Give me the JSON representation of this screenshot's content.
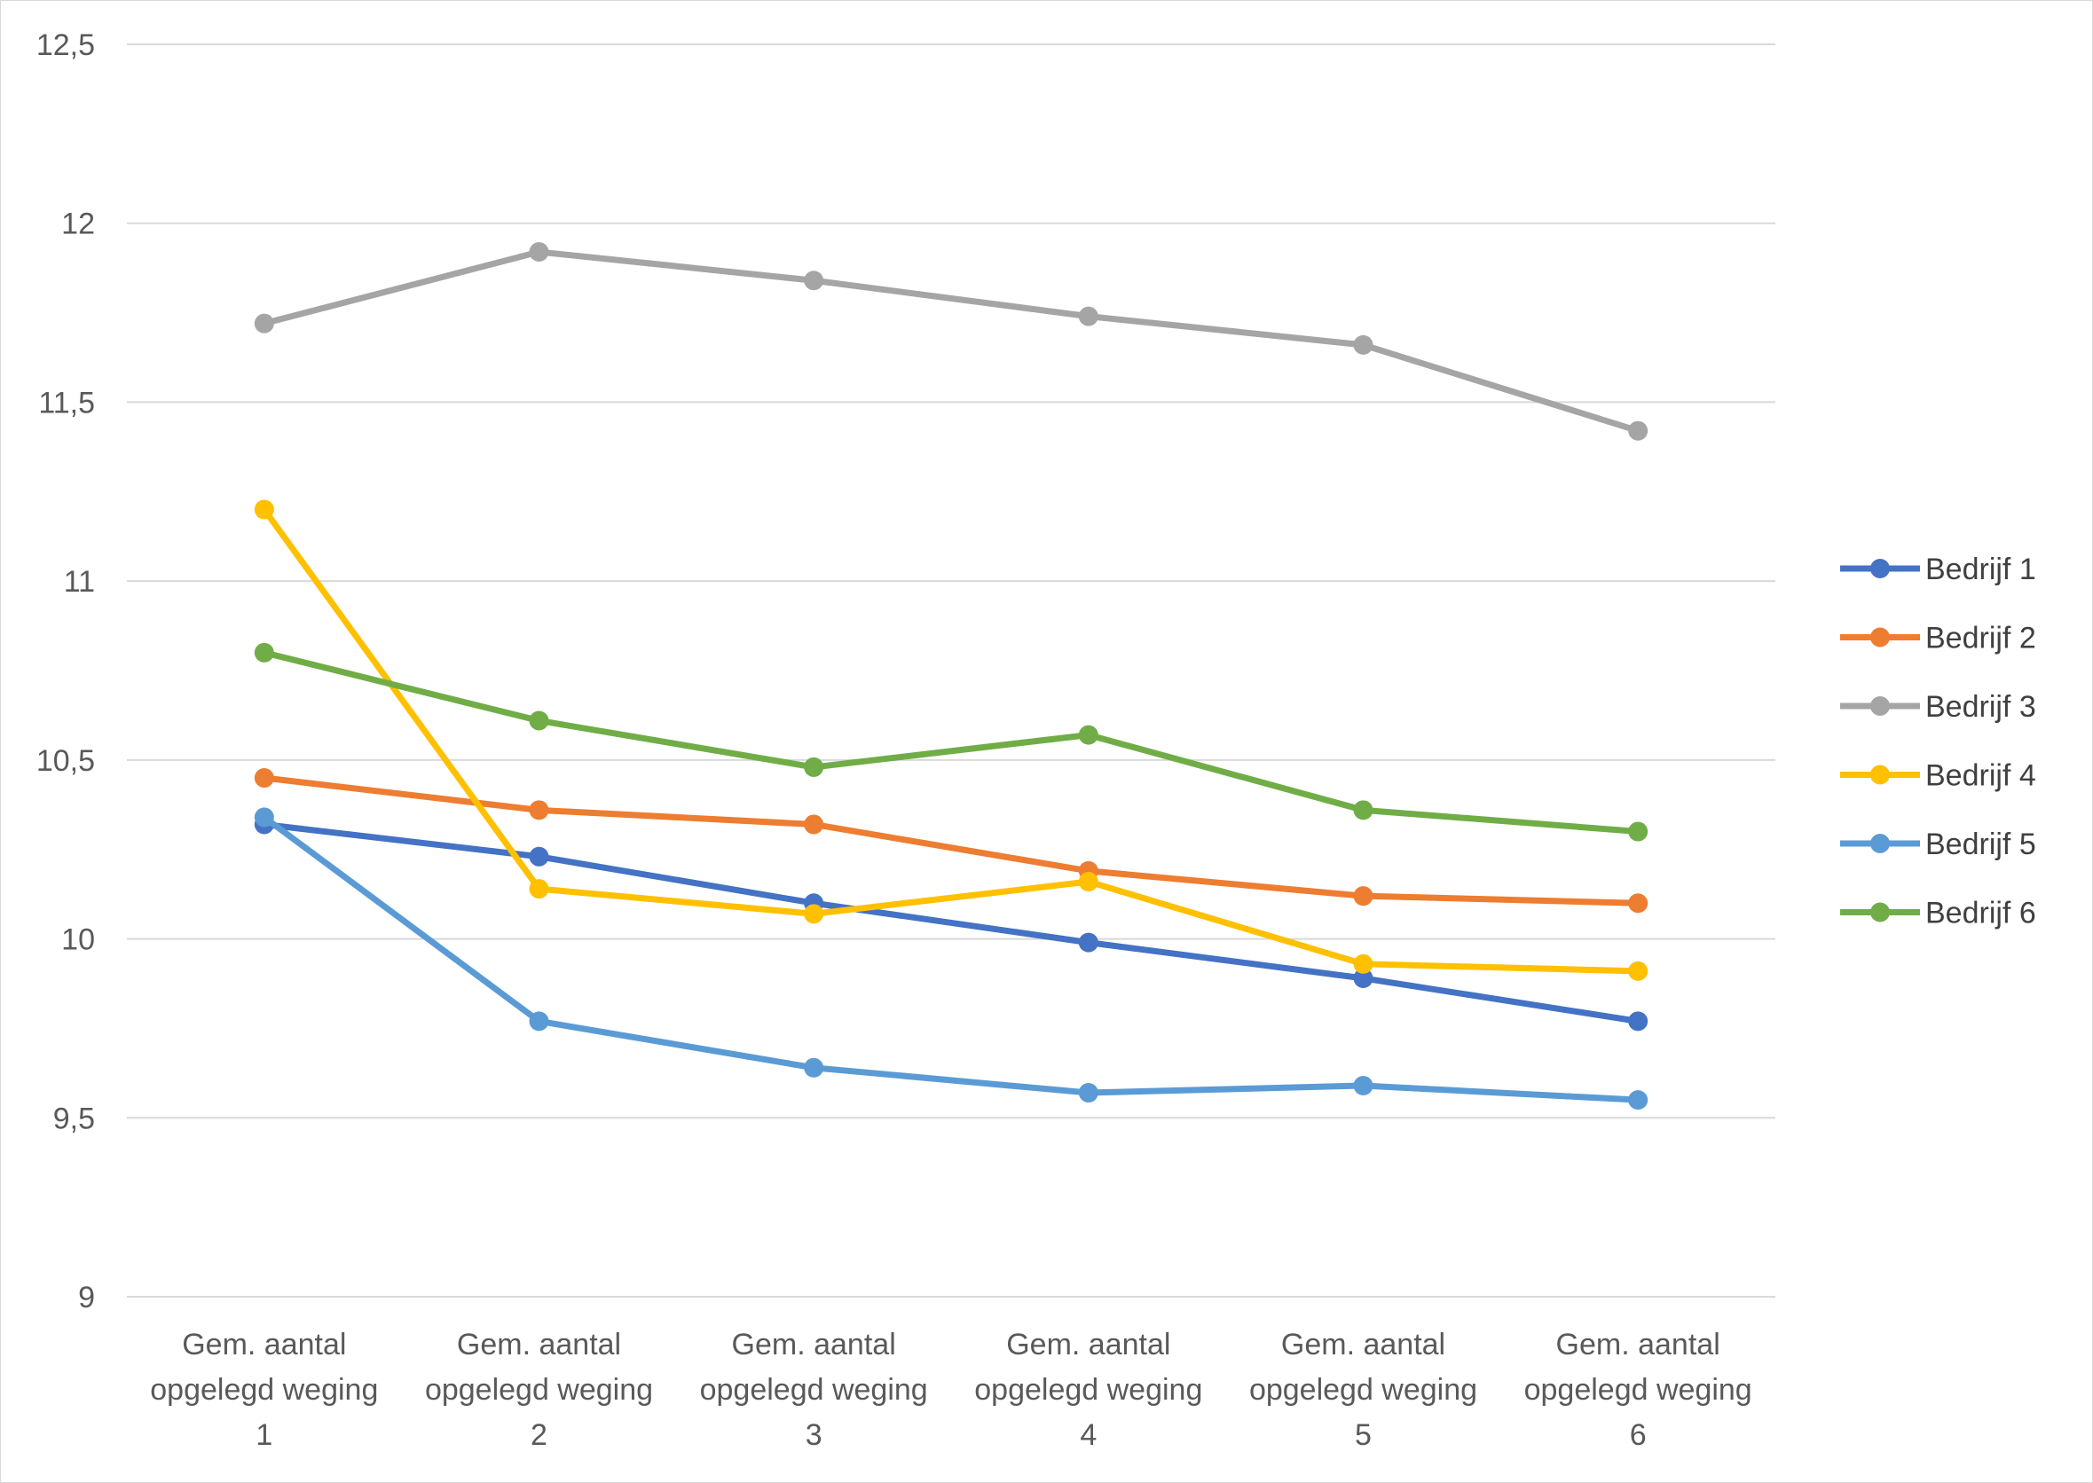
{
  "chart_data": {
    "type": "line",
    "categories": [
      [
        "Gem. aantal",
        "opgelegd weging",
        "1"
      ],
      [
        "Gem. aantal",
        "opgelegd weging",
        "2"
      ],
      [
        "Gem. aantal",
        "opgelegd weging",
        "3"
      ],
      [
        "Gem. aantal",
        "opgelegd weging",
        "4"
      ],
      [
        "Gem. aantal",
        "opgelegd weging",
        "5"
      ],
      [
        "Gem. aantal",
        "opgelegd weging",
        "6"
      ]
    ],
    "ylim": [
      9,
      12.5
    ],
    "yticks": [
      9,
      9.5,
      10,
      10.5,
      11,
      11.5,
      12,
      12.5
    ],
    "ytick_labels": [
      "9",
      "9,5",
      "10",
      "10,5",
      "11",
      "11,5",
      "12",
      "12,5"
    ],
    "grid": true,
    "legend_position": "right",
    "series": [
      {
        "name": "Bedrijf 1",
        "color": "#4472C4",
        "values": [
          10.32,
          10.23,
          10.1,
          9.99,
          9.89,
          9.77
        ]
      },
      {
        "name": "Bedrijf 2",
        "color": "#ED7D31",
        "values": [
          10.45,
          10.36,
          10.32,
          10.19,
          10.12,
          10.1
        ]
      },
      {
        "name": "Bedrijf 3",
        "color": "#A5A5A5",
        "values": [
          11.72,
          11.92,
          11.84,
          11.74,
          11.66,
          11.42
        ]
      },
      {
        "name": "Bedrijf 4",
        "color": "#FFC000",
        "values": [
          11.2,
          10.14,
          10.07,
          10.16,
          9.93,
          9.91
        ]
      },
      {
        "name": "Bedrijf 5",
        "color": "#5B9BD5",
        "values": [
          10.34,
          9.77,
          9.64,
          9.57,
          9.59,
          9.55
        ]
      },
      {
        "name": "Bedrijf 6",
        "color": "#70AD47",
        "values": [
          10.8,
          10.61,
          10.48,
          10.57,
          10.36,
          10.3
        ]
      }
    ]
  }
}
